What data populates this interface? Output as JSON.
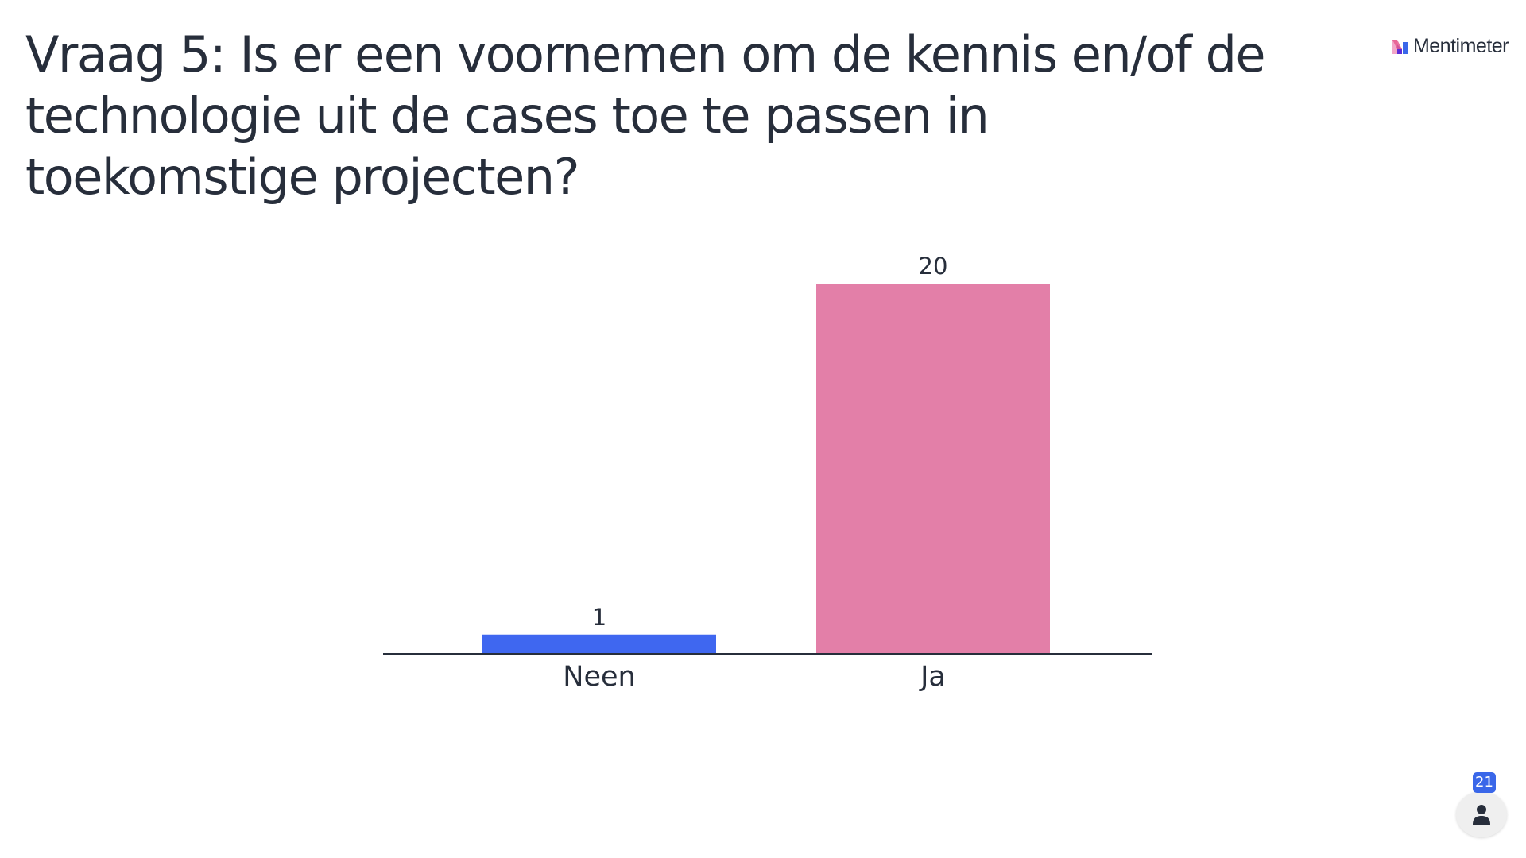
{
  "slide": {
    "title": "Vraag 5: Is er een voornemen om de kennis en/of de technologie uit de cases toe te passen in toekomstige projecten?"
  },
  "brand": {
    "name": "Mentimeter",
    "logo_icon": "mentimeter-logo-icon"
  },
  "participants": {
    "count": "21",
    "icon": "person-icon"
  },
  "colors": {
    "text": "#272e3b",
    "bar_neen": "#3f67f0",
    "bar_ja": "#e37fa8",
    "axis": "#272e3b",
    "badge": "#3a67e9"
  },
  "chart_data": {
    "type": "bar",
    "categories": [
      "Neen",
      "Ja"
    ],
    "values": [
      1,
      20
    ],
    "value_labels": [
      "1",
      "20"
    ],
    "colors": [
      "#3f67f0",
      "#e37fa8"
    ],
    "title": "",
    "xlabel": "",
    "ylabel": "",
    "ylim": [
      0,
      20
    ],
    "grid": false,
    "legend": "none"
  }
}
